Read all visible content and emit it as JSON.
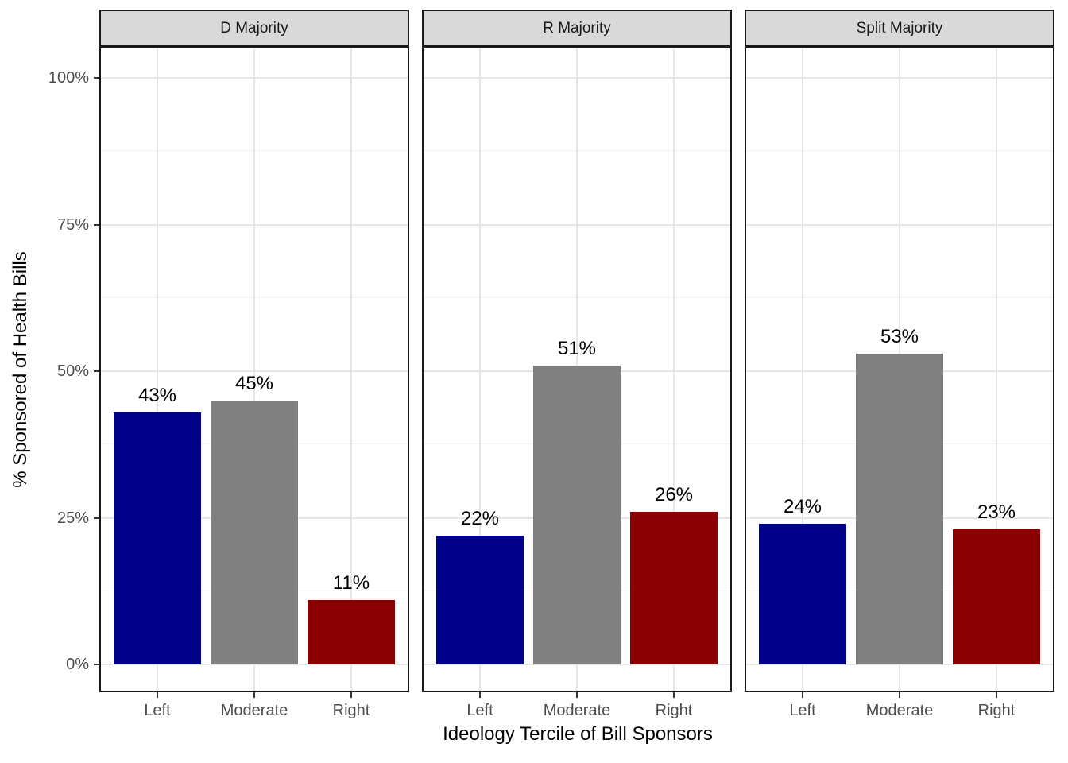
{
  "chart_data": {
    "type": "bar",
    "title": "",
    "xlabel": "Ideology Tercile of Bill Sponsors",
    "ylabel": "% Sponsored of Health Bills",
    "categories": [
      "Left",
      "Moderate",
      "Right"
    ],
    "facets": [
      {
        "label": "D Majority",
        "values": [
          43,
          45,
          11
        ]
      },
      {
        "label": "R Majority",
        "values": [
          22,
          51,
          26
        ]
      },
      {
        "label": "Split Majority",
        "values": [
          24,
          53,
          23
        ]
      }
    ],
    "value_label_suffix": "%",
    "y_ticks": [
      {
        "value": 0,
        "label": "0%"
      },
      {
        "value": 25,
        "label": "25%"
      },
      {
        "value": 50,
        "label": "50%"
      },
      {
        "value": 75,
        "label": "75%"
      },
      {
        "value": 100,
        "label": "100%"
      }
    ],
    "y_minor_ticks": [
      12.5,
      37.5,
      62.5,
      87.5
    ],
    "ylim": [
      0,
      105
    ],
    "grid": "major-and-minor",
    "legend": "none"
  },
  "colors": {
    "bar_by_category": [
      "#00008B",
      "#808080",
      "#8B0000"
    ],
    "strip_background": "#D9D9D9",
    "panel_border": "#1A1A1A",
    "grid_major": "#E6E6E6",
    "grid_minor": "#F2F2F2",
    "tick_label": "#4D4D4D",
    "axis_title": "#000000",
    "background": "#FFFFFF"
  }
}
